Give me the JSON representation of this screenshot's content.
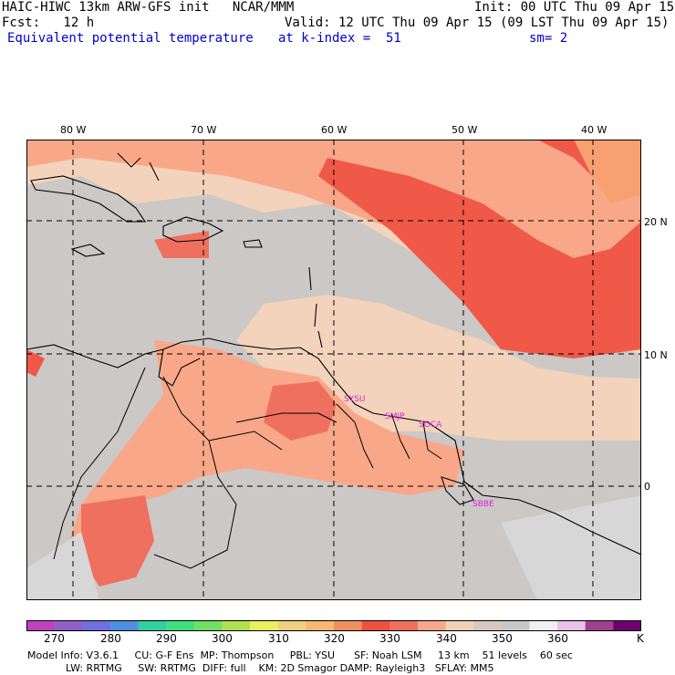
{
  "header": {
    "line1_left": "HAIC-HIWC 13km ARW-GFS init   NCAR/MMM",
    "line1_right": "Init: 00 UTC Thu 09 Apr 15",
    "line2_left": "Fcst:   12 h",
    "line2_right": "Valid: 12 UTC Thu 09 Apr 15 (09 LST Thu 09 Apr 15)",
    "line3_field": "Equivalent potential temperature",
    "line3_k": "at k-index =  51",
    "line3_sm": "sm= 2"
  },
  "axes": {
    "lon_labels": [
      "80 W",
      "70 W",
      "60 W",
      "50 W",
      "40 W"
    ],
    "lat_labels": [
      "20 N",
      "10 N",
      "0"
    ]
  },
  "stations": [
    "SYSU",
    "SMJP",
    "SOCA",
    "SBBE"
  ],
  "colorbar": {
    "labels": [
      "270",
      "280",
      "290",
      "300",
      "310",
      "320",
      "330",
      "340",
      "350",
      "360",
      "K"
    ],
    "colors": [
      "#c040c0",
      "#9060c8",
      "#7070e0",
      "#5090e0",
      "#30d0a0",
      "#40e080",
      "#70e060",
      "#b0e050",
      "#e8f060",
      "#f0d080",
      "#f8b870",
      "#f09060",
      "#f05040",
      "#f07060",
      "#f8a888",
      "#f0d0b8",
      "#d8c8c0",
      "#c8c8c8",
      "#f0f0f0",
      "#e8c0e8",
      "#a04090",
      "#700070"
    ]
  },
  "field_colors": {
    "gray": "#cbc8c6",
    "tan": "#f3d3bb",
    "salmon": "#f8a888",
    "coral": "#f07060",
    "red": "#f05848",
    "lightgray": "#d7d7d7",
    "grid": "#000000"
  },
  "footer": {
    "line1": "Model Info: V3.6.1     CU: G-F Ens  MP: Thompson     PBL: YSU      SF: Noah LSM     13 km    51 levels    60 sec",
    "line2": "LW: RRTMG     SW: RRTMG  DIFF: full    KM: 2D Smagor DAMP: Rayleigh3   SFLAY: MM5"
  }
}
